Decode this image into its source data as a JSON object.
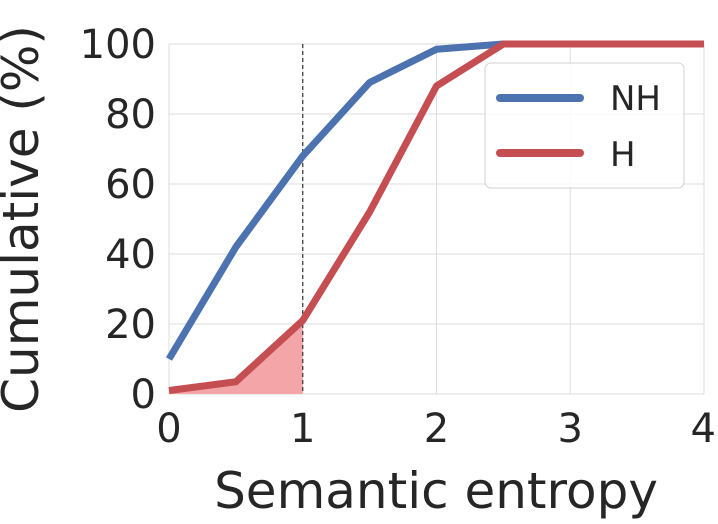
{
  "chart_data": {
    "type": "line",
    "xlabel": "Semantic entropy",
    "ylabel": "Cumulative (%)",
    "xlim": [
      0,
      4
    ],
    "ylim": [
      0,
      100
    ],
    "xticks": [
      0,
      1,
      2,
      3,
      4
    ],
    "yticks": [
      0,
      20,
      40,
      60,
      80,
      100
    ],
    "grid": true,
    "legend_position": "top-right",
    "threshold_line_x": 1,
    "series": [
      {
        "name": "NH",
        "color": "#4C72B0",
        "x": [
          0,
          0.5,
          1,
          1.5,
          2,
          2.5,
          3,
          3.5,
          4
        ],
        "values": [
          10,
          42,
          68,
          89,
          98.5,
          100,
          100,
          100,
          100
        ]
      },
      {
        "name": "H",
        "color": "#C44E52",
        "x": [
          0,
          0.5,
          1,
          1.5,
          2,
          2.5,
          3,
          3.5,
          4
        ],
        "values": [
          1,
          3.5,
          21,
          52,
          88,
          100,
          100,
          100,
          100
        ]
      }
    ],
    "shaded_region": {
      "series": "H",
      "x_range": [
        0,
        1
      ],
      "color": "#F4A5A8"
    }
  }
}
